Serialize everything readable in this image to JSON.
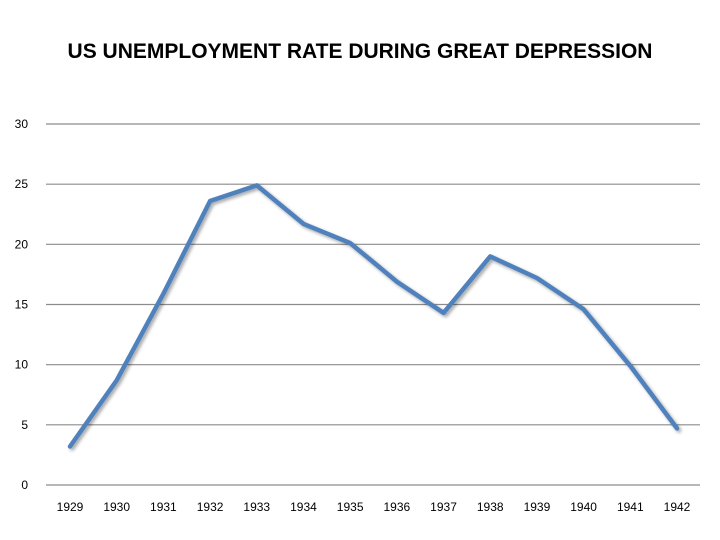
{
  "chart_data": {
    "type": "line",
    "title": "US UNEMPLOYMENT RATE DURING GREAT DEPRESSION",
    "xlabel": "",
    "ylabel": "",
    "categories": [
      "1929",
      "1930",
      "1931",
      "1932",
      "1933",
      "1934",
      "1935",
      "1936",
      "1937",
      "1938",
      "1939",
      "1940",
      "1941",
      "1942"
    ],
    "series": [
      {
        "values": [
          3.2,
          8.7,
          15.9,
          23.6,
          24.9,
          21.7,
          20.1,
          16.9,
          14.3,
          19.0,
          17.2,
          14.6,
          9.9,
          4.7
        ]
      }
    ],
    "ylim": [
      0,
      30
    ],
    "yticks": [
      0,
      5,
      10,
      15,
      20,
      25,
      30
    ],
    "grid": true,
    "legend": "none",
    "line_color": "#4f81bd",
    "grid_color": "#8c8c8c"
  }
}
